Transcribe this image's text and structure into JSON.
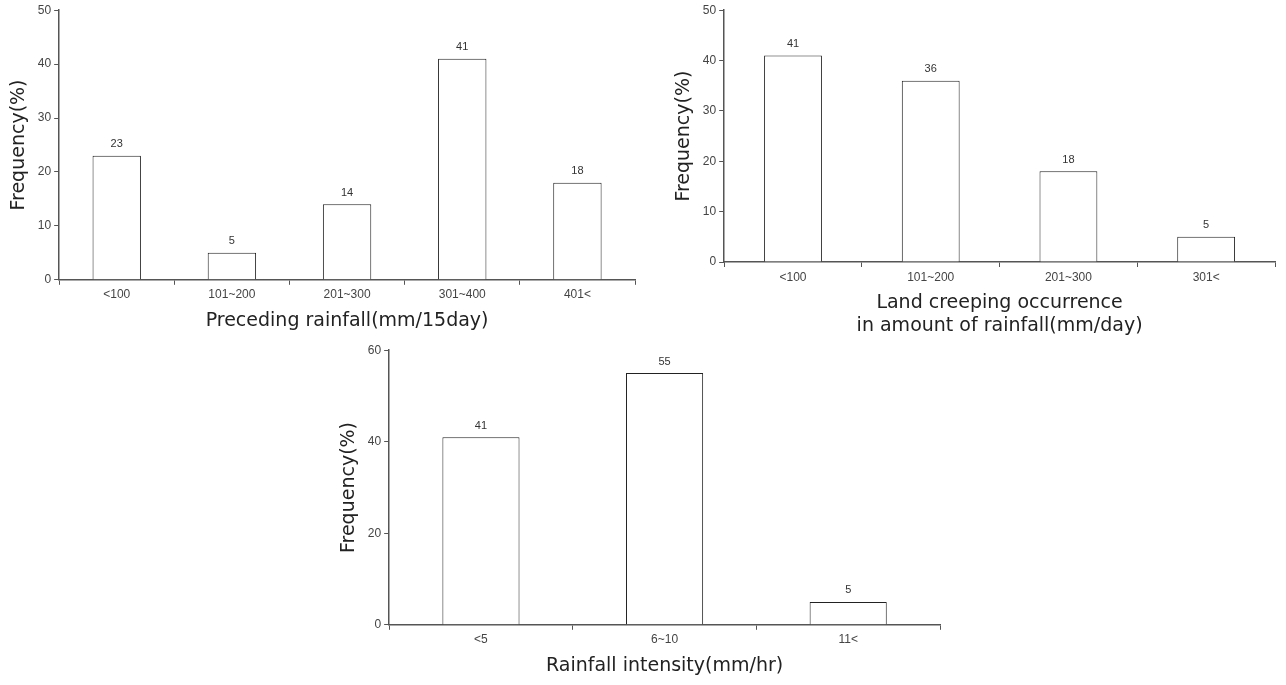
{
  "chart_data": [
    {
      "type": "bar",
      "xlabel": "Preceding rainfall(mm/15day)",
      "ylabel": "Frequency(%)",
      "categories": [
        "<100",
        "101~200",
        "201~300",
        "301~400",
        "401<"
      ],
      "values": [
        23,
        5,
        14,
        41,
        18
      ],
      "color": "#ffffff",
      "ylim": [
        0,
        50
      ],
      "yticks": [
        0,
        10,
        20,
        30,
        40,
        50
      ],
      "data_labels": true,
      "grid": false,
      "legend": false
    },
    {
      "type": "bar",
      "xlabel": "Land creeping occurrence\nin amount of rainfall(mm/day)",
      "ylabel": "Frequency(%)",
      "categories": [
        "<100",
        "101~200",
        "201~300",
        "301<"
      ],
      "values": [
        41,
        36,
        18,
        5
      ],
      "color": "#ffffff",
      "ylim": [
        0,
        50
      ],
      "yticks": [
        0,
        10,
        20,
        30,
        40,
        50
      ],
      "data_labels": true,
      "grid": false,
      "legend": false
    },
    {
      "type": "bar",
      "xlabel": "Rainfall intensity(mm/hr)",
      "ylabel": "Frequency(%)",
      "categories": [
        "<5",
        "6~10",
        "11<"
      ],
      "values": [
        41,
        55,
        5
      ],
      "color": "#ffffff",
      "ylim": [
        0,
        60
      ],
      "yticks": [
        0,
        20,
        40,
        60
      ],
      "data_labels": true,
      "grid": false,
      "legend": false
    }
  ]
}
